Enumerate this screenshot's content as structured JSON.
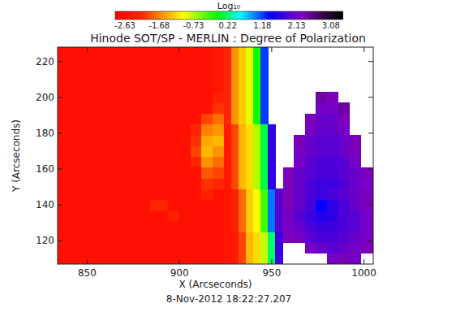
{
  "chart_data": {
    "type": "heatmap",
    "title": "Hinode SOT/SP - MERLIN : Degree of Polarization",
    "subtitle": "8-Nov-2012 18:22:27.207",
    "x_label": "X (Arcseconds)",
    "y_label": "Y (Arcseconds)",
    "xlim": [
      834,
      1005
    ],
    "ylim": [
      107,
      228
    ],
    "xticks": [
      850,
      900,
      950,
      1000
    ],
    "yticks": [
      120,
      140,
      160,
      180,
      200,
      220
    ],
    "grid": false,
    "colorbar_label": "Log₁₀",
    "colorbar_range": [
      -2.9,
      3.4
    ],
    "colorbar_ticks": [
      -2.63,
      -1.68,
      -0.73,
      0.22,
      1.18,
      2.13,
      3.08
    ],
    "x_edges": [
      834,
      844,
      854,
      864,
      874,
      884,
      894,
      900,
      906,
      912,
      918,
      924,
      928,
      932,
      936,
      940,
      944,
      948,
      952,
      956,
      962,
      968,
      974,
      980,
      986,
      992,
      998,
      1005
    ],
    "y_edges": [
      107,
      113,
      119,
      125,
      131,
      137,
      143,
      149,
      155,
      161,
      167,
      173,
      179,
      185,
      191,
      197,
      203,
      209,
      215,
      221,
      228
    ],
    "values": [
      [
        -2.6,
        -2.6,
        -2.6,
        -2.6,
        -2.6,
        -2.6,
        -2.6,
        -2.6,
        -2.6,
        -2.6,
        -2.6,
        -2.5,
        -2.4,
        -2.0,
        -1.4,
        -1.2,
        -0.8,
        0.2,
        1.8,
        null,
        null,
        null,
        null,
        2.2,
        2.3,
        2.2,
        null
      ],
      [
        -2.6,
        -2.6,
        -2.6,
        -2.6,
        -2.6,
        -2.6,
        -2.6,
        -2.6,
        -2.6,
        -2.6,
        -2.6,
        -2.5,
        -2.4,
        -2.0,
        -1.4,
        -1.2,
        -0.8,
        0.2,
        1.8,
        null,
        null,
        2.2,
        2.1,
        2.0,
        2.1,
        2.2,
        2.3
      ],
      [
        -2.6,
        -2.6,
        -2.6,
        -2.6,
        -2.6,
        -2.6,
        -2.6,
        -2.6,
        -2.6,
        -2.6,
        -2.6,
        -2.5,
        -2.4,
        -2.0,
        -1.4,
        -1.2,
        -0.8,
        0.2,
        1.8,
        2.3,
        2.2,
        2.0,
        1.9,
        1.9,
        2.0,
        2.1,
        2.2
      ],
      [
        -2.6,
        -2.6,
        -2.6,
        -2.6,
        -2.6,
        -2.6,
        -2.6,
        -2.6,
        -2.6,
        -2.6,
        -2.6,
        -2.5,
        -2.3,
        -1.8,
        -1.3,
        -1.0,
        -0.3,
        1.0,
        2.0,
        2.2,
        2.1,
        1.9,
        1.8,
        1.8,
        1.9,
        2.0,
        2.2
      ],
      [
        -2.6,
        -2.6,
        -2.6,
        -2.6,
        -2.6,
        -2.6,
        -2.3,
        -2.6,
        -2.6,
        -2.6,
        -2.6,
        -2.5,
        -2.3,
        -1.8,
        -1.3,
        -1.0,
        -0.3,
        1.0,
        2.0,
        2.2,
        2.0,
        1.8,
        1.6,
        1.7,
        1.9,
        2.0,
        2.2
      ],
      [
        -2.6,
        -2.6,
        -2.6,
        -2.6,
        -2.6,
        -2.2,
        -2.6,
        -2.6,
        -2.6,
        -2.6,
        -2.6,
        -2.5,
        -2.3,
        -1.8,
        -1.3,
        -1.0,
        -0.3,
        1.0,
        2.0,
        2.3,
        2.1,
        1.9,
        1.4,
        1.7,
        1.9,
        2.1,
        2.3
      ],
      [
        -2.6,
        -2.6,
        -2.6,
        -2.6,
        -2.6,
        -2.6,
        -2.6,
        -2.6,
        -2.6,
        -2.3,
        -2.6,
        -2.5,
        -2.3,
        -1.8,
        -1.3,
        -1.0,
        -0.3,
        1.0,
        2.0,
        2.3,
        2.1,
        1.9,
        1.8,
        1.9,
        2.0,
        2.1,
        2.3
      ],
      [
        -2.6,
        -2.6,
        -2.6,
        -2.6,
        -2.6,
        -2.6,
        -2.6,
        -2.6,
        -2.6,
        -2.1,
        -2.2,
        -2.4,
        -2.0,
        -1.4,
        -1.2,
        -0.7,
        0.1,
        1.7,
        null,
        2.3,
        2.1,
        1.9,
        1.8,
        1.8,
        1.9,
        2.1,
        2.2
      ],
      [
        -2.6,
        -2.6,
        -2.6,
        -2.6,
        -2.6,
        -2.6,
        -2.6,
        -2.6,
        -2.6,
        -1.9,
        -2.0,
        -2.4,
        -2.0,
        -1.4,
        -1.2,
        -0.7,
        0.1,
        1.7,
        null,
        2.3,
        2.1,
        2.0,
        1.9,
        1.9,
        2.0,
        2.1,
        2.3
      ],
      [
        -2.6,
        -2.6,
        -2.6,
        -2.6,
        -2.6,
        -2.6,
        -2.6,
        -2.6,
        -2.2,
        -1.6,
        -1.8,
        -2.4,
        -2.0,
        -1.4,
        -1.2,
        -0.7,
        0.1,
        1.7,
        null,
        null,
        2.2,
        2.0,
        1.9,
        1.9,
        2.0,
        2.2,
        null
      ],
      [
        -2.6,
        -2.6,
        -2.6,
        -2.6,
        -2.6,
        -2.6,
        -2.6,
        -2.6,
        -2.0,
        -1.4,
        -1.6,
        -2.4,
        -2.0,
        -1.4,
        -1.2,
        -0.7,
        0.1,
        1.7,
        null,
        null,
        2.2,
        2.1,
        2.0,
        2.0,
        2.1,
        2.3,
        null
      ],
      [
        -2.6,
        -2.6,
        -2.6,
        -2.6,
        -2.6,
        -2.6,
        -2.6,
        -2.6,
        -2.1,
        -1.5,
        -1.4,
        -2.4,
        -2.0,
        -1.4,
        -1.2,
        -0.7,
        0.1,
        1.7,
        null,
        null,
        2.3,
        2.1,
        2.0,
        2.0,
        2.1,
        2.3,
        null
      ],
      [
        -2.6,
        -2.6,
        -2.6,
        -2.6,
        -2.6,
        -2.6,
        -2.6,
        -2.6,
        -2.2,
        -1.7,
        -1.6,
        -2.4,
        -2.0,
        -1.4,
        -1.2,
        -0.7,
        0.1,
        1.7,
        null,
        null,
        null,
        2.2,
        2.1,
        2.1,
        2.2,
        null,
        null
      ],
      [
        -2.6,
        -2.6,
        -2.6,
        -2.6,
        -2.6,
        -2.6,
        -2.6,
        -2.6,
        -2.6,
        -2.0,
        -1.8,
        -2.2,
        -1.6,
        -1.3,
        -0.9,
        -0.1,
        1.2,
        null,
        null,
        null,
        null,
        2.3,
        2.1,
        2.1,
        2.3,
        null,
        null
      ],
      [
        -2.6,
        -2.6,
        -2.6,
        -2.6,
        -2.6,
        -2.6,
        -2.6,
        -2.6,
        -2.6,
        -2.6,
        -2.1,
        -2.2,
        -1.6,
        -1.3,
        -0.9,
        -0.1,
        1.2,
        null,
        null,
        null,
        null,
        null,
        2.2,
        2.2,
        2.4,
        null,
        null
      ],
      [
        -2.6,
        -2.6,
        -2.6,
        -2.6,
        -2.6,
        -2.6,
        -2.6,
        -2.6,
        -2.6,
        -2.6,
        -2.3,
        -2.2,
        -1.6,
        -1.3,
        -0.9,
        -0.1,
        1.2,
        null,
        null,
        null,
        null,
        null,
        2.4,
        2.3,
        null,
        null,
        null
      ],
      [
        -2.6,
        -2.6,
        -2.6,
        -2.6,
        -2.6,
        -2.6,
        -2.6,
        -2.6,
        -2.6,
        -2.6,
        -2.5,
        -2.2,
        -1.6,
        -1.3,
        -0.9,
        -0.1,
        1.2,
        null,
        null,
        null,
        null,
        null,
        null,
        null,
        null,
        null,
        null
      ],
      [
        -2.6,
        -2.6,
        -2.6,
        -2.6,
        -2.6,
        -2.6,
        -2.6,
        -2.6,
        -2.6,
        -2.6,
        -2.5,
        -2.2,
        -1.6,
        -1.3,
        -0.9,
        -0.1,
        1.2,
        null,
        null,
        null,
        null,
        null,
        null,
        null,
        null,
        null,
        null
      ],
      [
        -2.6,
        -2.6,
        -2.6,
        -2.6,
        -2.6,
        -2.6,
        -2.6,
        -2.6,
        -2.6,
        -2.6,
        -2.5,
        -2.2,
        -1.6,
        -1.3,
        -0.9,
        -0.1,
        1.2,
        null,
        null,
        null,
        null,
        null,
        null,
        null,
        null,
        null,
        null
      ],
      [
        -2.6,
        -2.6,
        -2.6,
        -2.6,
        -2.6,
        -2.6,
        -2.6,
        -2.6,
        -2.6,
        -2.6,
        -2.5,
        -2.2,
        -1.6,
        -1.3,
        -0.9,
        -0.1,
        1.2,
        null,
        null,
        null,
        null,
        null,
        null,
        null,
        null,
        null,
        null
      ]
    ]
  }
}
